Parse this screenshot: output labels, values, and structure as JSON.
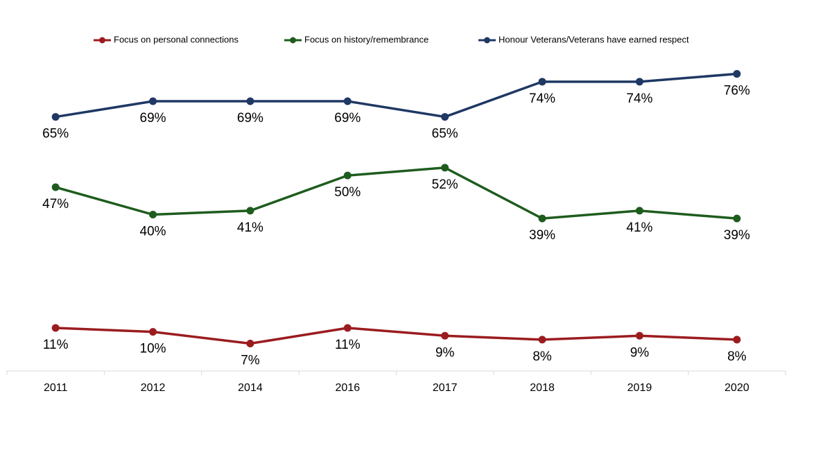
{
  "chart_data": {
    "type": "line",
    "categories": [
      "2011",
      "2012",
      "2014",
      "2016",
      "2017",
      "2018",
      "2019",
      "2020"
    ],
    "ylim": [
      0,
      80
    ],
    "series": [
      {
        "name": "Focus on personal connections",
        "color": "#9b1c1f",
        "values": [
          11,
          10,
          7,
          11,
          9,
          8,
          9,
          8
        ],
        "value_labels": [
          "11%",
          "10%",
          "7%",
          "11%",
          "9%",
          "8%",
          "9%",
          "8%"
        ]
      },
      {
        "name": "Focus on history/remembrance",
        "color": "#1e5c1e",
        "values": [
          47,
          40,
          41,
          50,
          52,
          39,
          41,
          39
        ],
        "value_labels": [
          "47%",
          "40%",
          "41%",
          "50%",
          "52%",
          "39%",
          "41%",
          "39%"
        ]
      },
      {
        "name": "Honour Veterans/Veterans have earned respect",
        "color": "#1f3864",
        "values": [
          65,
          69,
          69,
          69,
          65,
          74,
          74,
          76
        ],
        "value_labels": [
          "65%",
          "69%",
          "69%",
          "69%",
          "65%",
          "74%",
          "74%",
          "76%"
        ]
      }
    ]
  }
}
